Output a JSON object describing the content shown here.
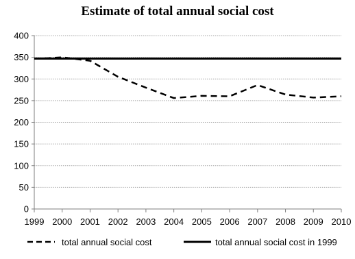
{
  "chart_data": {
    "type": "line",
    "title": "Estimate of total annual social cost",
    "xlabel": "",
    "ylabel": "",
    "x": [
      1999,
      1999.5,
      2000,
      2001,
      2002,
      2003,
      2004,
      2005,
      2006,
      2007,
      2008,
      2009,
      2010
    ],
    "x_ticks": [
      "1999",
      "2000",
      "2001",
      "2002",
      "2003",
      "2004",
      "2005",
      "2006",
      "2007",
      "2008",
      "2009",
      "2010"
    ],
    "y_ticks": [
      "0",
      "50",
      "100",
      "150",
      "200",
      "250",
      "300",
      "350",
      "400"
    ],
    "xlim": [
      1999,
      2010
    ],
    "ylim": [
      0,
      400
    ],
    "grid": true,
    "legend_position": "bottom",
    "series": [
      {
        "name": "total annual social cost",
        "style": "dashed",
        "color": "#000000",
        "values": [
          347,
          348,
          350,
          342,
          305,
          280,
          256,
          261,
          260,
          286,
          264,
          257,
          260
        ]
      },
      {
        "name": "total annual social cost in 1999",
        "style": "solid",
        "color": "#000000",
        "values": [
          347,
          347,
          347,
          347,
          347,
          347,
          347,
          347,
          347,
          347,
          347,
          347,
          347
        ]
      }
    ]
  }
}
